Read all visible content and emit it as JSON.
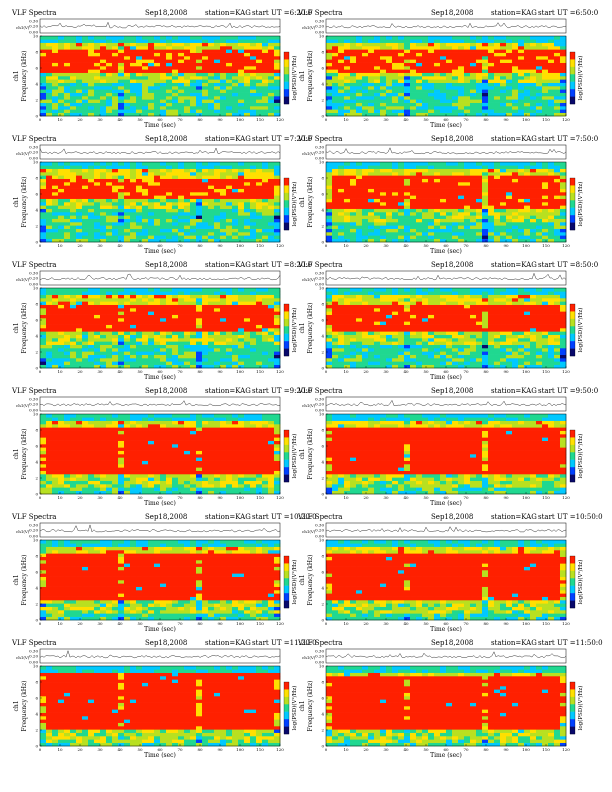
{
  "chart_data": {
    "type": "heatmap",
    "panel_titles": [
      "VLF Spectra",
      "Sep18,2008",
      "station=KAG"
    ],
    "header_label": "VLF Spectra",
    "date_label": "Sep18,2008",
    "station_label": "station=KAG",
    "start_prefix": "start  UT  =",
    "xlabel": "Time (sec)",
    "ylabel_freq": "Frequency (kHz)",
    "ylabel_channel": "ch1",
    "amp_label": "ch1(V)",
    "colorbar_label": "log(PSD)(V²/Hz)",
    "xlim": [
      0,
      120
    ],
    "ylim_freq": [
      0,
      10
    ],
    "ylim_amp": [
      0.0,
      0.3
    ],
    "x_ticks": [
      "0",
      "10",
      "20",
      "30",
      "40",
      "50",
      "60",
      "70",
      "80",
      "90",
      "100",
      "110",
      "120"
    ],
    "y_ticks_freq": [
      "0",
      "2",
      "4",
      "6",
      "8",
      "10"
    ],
    "y_ticks_amp": [
      "0.00",
      "0.20",
      "0.30"
    ],
    "panels": [
      {
        "start_ut": "6:20:0",
        "red_band_khz": [
          5.6,
          8.2
        ],
        "intensity": 0.62
      },
      {
        "start_ut": "6:50:0",
        "red_band_khz": [
          5.6,
          8.2
        ],
        "intensity": 0.62
      },
      {
        "start_ut": "7:20:0",
        "red_band_khz": [
          5.5,
          8.0
        ],
        "intensity": 0.7
      },
      {
        "start_ut": "7:50:0",
        "red_band_khz": [
          4.0,
          8.2
        ],
        "intensity": 0.72
      },
      {
        "start_ut": "8:20:0",
        "red_band_khz": [
          4.5,
          8.0
        ],
        "intensity": 0.8
      },
      {
        "start_ut": "8:50:0",
        "red_band_khz": [
          4.5,
          8.0
        ],
        "intensity": 0.8
      },
      {
        "start_ut": "9:20:0",
        "red_band_khz": [
          2.5,
          8.5
        ],
        "intensity": 0.88
      },
      {
        "start_ut": "9:50:0",
        "red_band_khz": [
          2.5,
          8.5
        ],
        "intensity": 0.9
      },
      {
        "start_ut": "10:20:0",
        "red_band_khz": [
          2.5,
          8.5
        ],
        "intensity": 0.86
      },
      {
        "start_ut": "10:50:0",
        "red_band_khz": [
          2.5,
          8.5
        ],
        "intensity": 0.86
      },
      {
        "start_ut": "11:20:0",
        "red_band_khz": [
          2.0,
          9.0
        ],
        "intensity": 0.9
      },
      {
        "start_ut": "11:50:0",
        "red_band_khz": [
          2.0,
          8.8
        ],
        "intensity": 0.88
      }
    ],
    "colormap": [
      "#08086b",
      "#0040ff",
      "#00c8ff",
      "#20d890",
      "#b8e020",
      "#ffe000",
      "#ff2000"
    ],
    "grid": false
  }
}
